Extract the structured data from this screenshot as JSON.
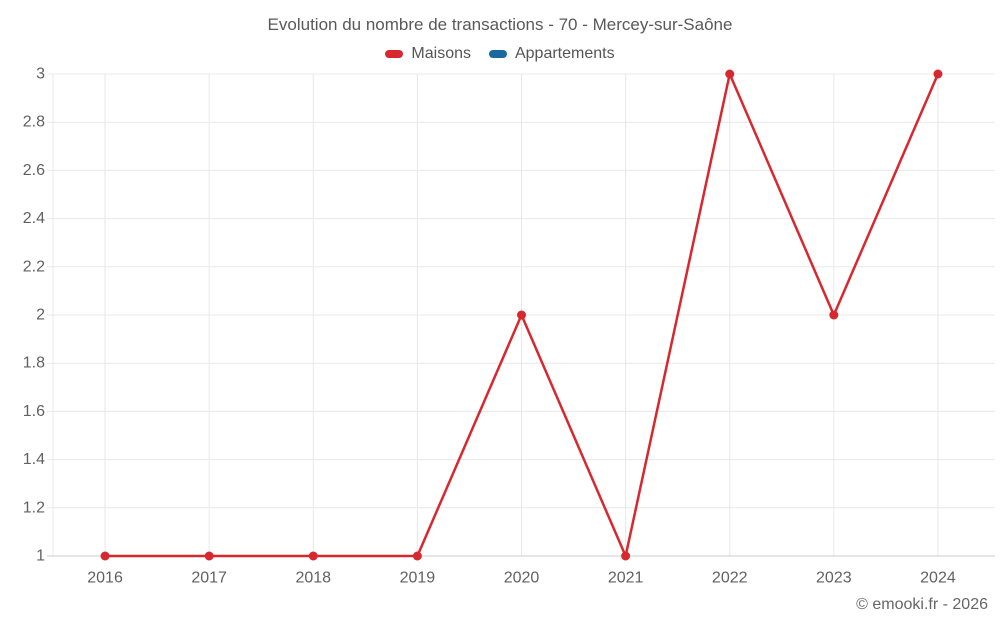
{
  "chart_data": {
    "type": "line",
    "title": "Evolution du nombre de transactions - 70 - Mercey-sur-Saône",
    "categories": [
      "2016",
      "2017",
      "2018",
      "2019",
      "2020",
      "2021",
      "2022",
      "2023",
      "2024"
    ],
    "series": [
      {
        "name": "Maisons",
        "color": "#d7282f",
        "values": [
          1,
          1,
          1,
          1,
          2,
          1,
          3,
          2,
          3
        ]
      },
      {
        "name": "Appartements",
        "color": "#17699f",
        "values": []
      }
    ],
    "xlabel": "",
    "ylabel": "",
    "ylim": [
      1,
      3
    ],
    "ytick_step": 0.2,
    "ytick_labels": [
      "1",
      "1.2",
      "1.4",
      "1.6",
      "1.8",
      "2",
      "2.2",
      "2.4",
      "2.6",
      "2.8",
      "3"
    ],
    "grid": true,
    "legend_position": "top",
    "marker": "circle"
  },
  "footer": {
    "credit": "© emooki.fr - 2026"
  },
  "colors": {
    "grid_line": "#e8e8e8",
    "axis_line": "#cccccc",
    "tick_text": "#616161",
    "title_text": "#595959",
    "legend_text": "#555555",
    "footer_text": "#666666"
  }
}
